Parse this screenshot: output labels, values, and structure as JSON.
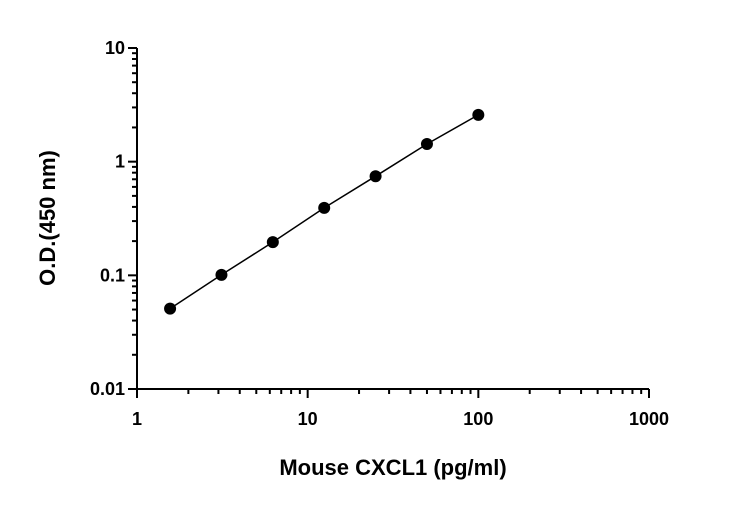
{
  "chart_data": {
    "type": "scatter",
    "title": "",
    "xlabel": "Mouse CXCL1 (pg/ml)",
    "ylabel": "O.D.(450 nm)",
    "x_scale": "log",
    "y_scale": "log",
    "xlim": [
      1,
      1000
    ],
    "ylim": [
      0.01,
      10
    ],
    "x_ticks": [
      "1",
      "10",
      "100",
      "1000"
    ],
    "y_ticks": [
      "0.01",
      "0.1",
      "1",
      "10"
    ],
    "grid": false,
    "legend": "none",
    "series": [
      {
        "x": [
          1.5625,
          3.125,
          6.25,
          12.5,
          25,
          50,
          100
        ],
        "y": [
          0.051,
          0.101,
          0.196,
          0.392,
          0.745,
          1.43,
          2.58
        ],
        "marker": "filled-circle",
        "line": "fit-line",
        "color": "#000000"
      }
    ]
  }
}
